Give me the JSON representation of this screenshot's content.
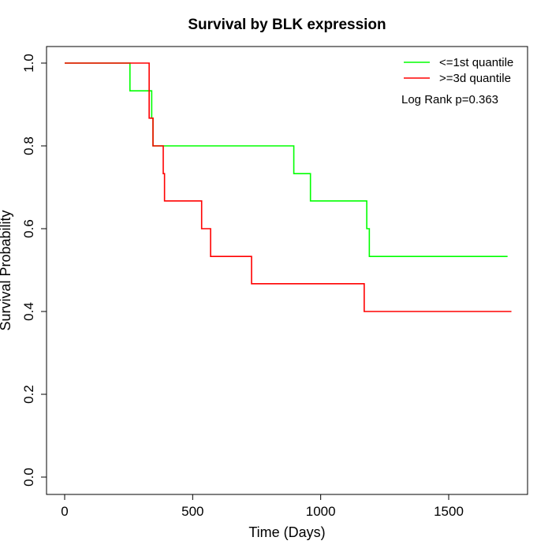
{
  "chart_data": {
    "type": "line",
    "title": "Survival by BLK expression",
    "xlabel": "Time (Days)",
    "ylabel": "Survival Probability",
    "xlim": [
      0,
      1800
    ],
    "ylim": [
      0,
      1.0
    ],
    "x_ticks": [
      0,
      500,
      1000,
      1500
    ],
    "x_tick_labels": [
      "0",
      "500",
      "1000",
      "1500"
    ],
    "y_ticks": [
      0.0,
      0.2,
      0.4,
      0.6,
      0.8,
      1.0
    ],
    "y_tick_labels": [
      "0.0",
      "0.2",
      "0.4",
      "0.6",
      "0.8",
      "1.0"
    ],
    "grid": false,
    "legend_position": "top-right",
    "annotation": "Log Rank p=0.363",
    "series": [
      {
        "name": "<=1st quantile",
        "color": "#00ff00",
        "step": true,
        "x": [
          0,
          255,
          340,
          345,
          895,
          960,
          1180,
          1190,
          1730
        ],
        "y": [
          1.0,
          0.933,
          0.867,
          0.8,
          0.733,
          0.667,
          0.6,
          0.533,
          0.533
        ]
      },
      {
        "name": ">=3d quantile",
        "color": "#ff0000",
        "step": true,
        "x": [
          0,
          330,
          345,
          385,
          390,
          535,
          570,
          730,
          1170,
          1745
        ],
        "y": [
          1.0,
          0.867,
          0.8,
          0.733,
          0.667,
          0.6,
          0.533,
          0.467,
          0.4,
          0.4
        ]
      }
    ]
  }
}
